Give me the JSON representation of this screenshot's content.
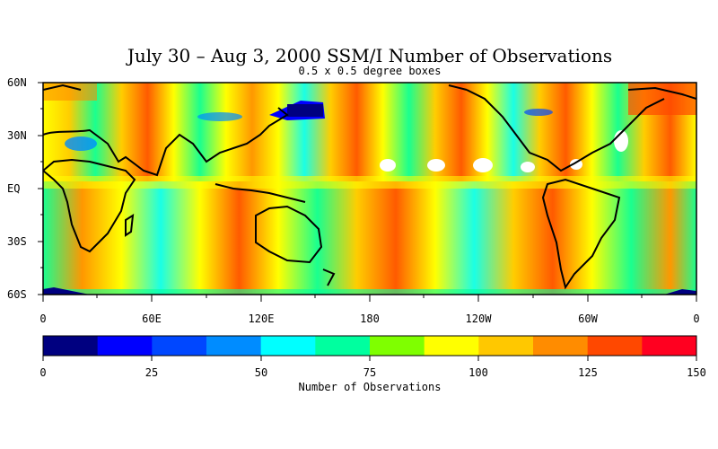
{
  "title": "July 30 – Aug 3, 2000 SSM/I Number of Observations",
  "subtitle": "0.5 x 0.5 degree boxes",
  "lat_labels": [
    "60N",
    "30N",
    "EQ",
    "30S",
    "60S"
  ],
  "lon_labels": [
    "0",
    "60E",
    "120E",
    "180",
    "120W",
    "60W",
    "0"
  ],
  "colorbar": {
    "title": "Number of Observations",
    "tick_labels": [
      "0",
      "25",
      "50",
      "75",
      "100",
      "125",
      "150"
    ],
    "colors": [
      "#000080",
      "#0000ff",
      "#0047ff",
      "#008cff",
      "#00ffff",
      "#00ff9f",
      "#7fff00",
      "#ffff00",
      "#ffc800",
      "#ff8c00",
      "#ff4800",
      "#ff0020"
    ],
    "range": [
      0,
      150
    ]
  }
}
